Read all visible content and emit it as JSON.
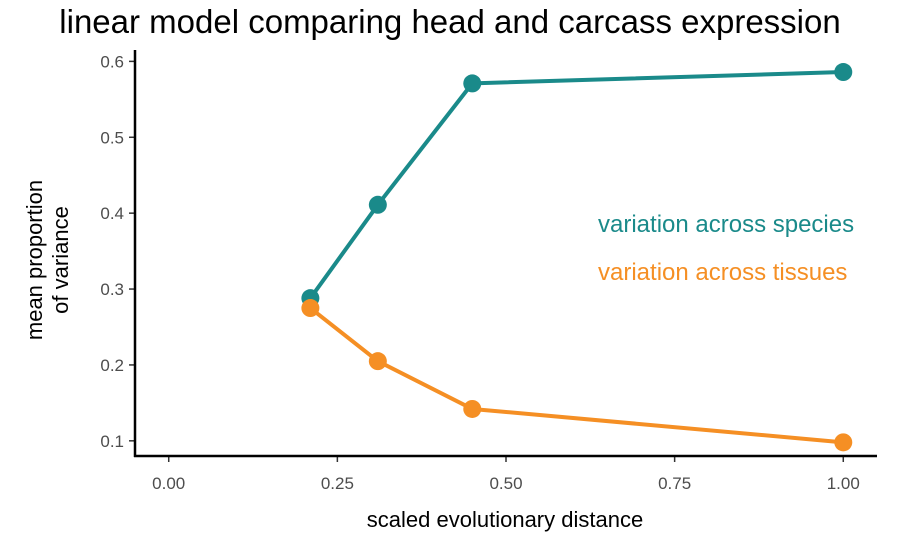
{
  "chart_data": {
    "type": "line",
    "title": "linear model comparing head and carcass expression",
    "xlabel": "scaled evolutionary distance",
    "ylabel_lines": [
      "mean proportion",
      "of variance"
    ],
    "xlim": [
      -0.05,
      1.05
    ],
    "ylim": [
      0.08,
      0.615
    ],
    "x_ticks": [
      0.0,
      0.25,
      0.5,
      0.75,
      1.0
    ],
    "x_tick_labels": [
      "0.00",
      "0.25",
      "0.50",
      "0.75",
      "1.00"
    ],
    "y_ticks": [
      0.1,
      0.2,
      0.3,
      0.4,
      0.5,
      0.6
    ],
    "y_tick_labels": [
      "0.1",
      "0.2",
      "0.3",
      "0.4",
      "0.5",
      "0.6"
    ],
    "grid": false,
    "legend_placement": "right",
    "series": [
      {
        "name": "variation across species",
        "color": "#1a8a8a",
        "x": [
          0.21,
          0.31,
          0.45,
          1.0
        ],
        "y": [
          0.288,
          0.411,
          0.571,
          0.586
        ]
      },
      {
        "name": "variation across tissues",
        "color": "#f58f24",
        "x": [
          0.21,
          0.31,
          0.45,
          1.0
        ],
        "y": [
          0.275,
          0.205,
          0.142,
          0.098
        ]
      }
    ]
  }
}
